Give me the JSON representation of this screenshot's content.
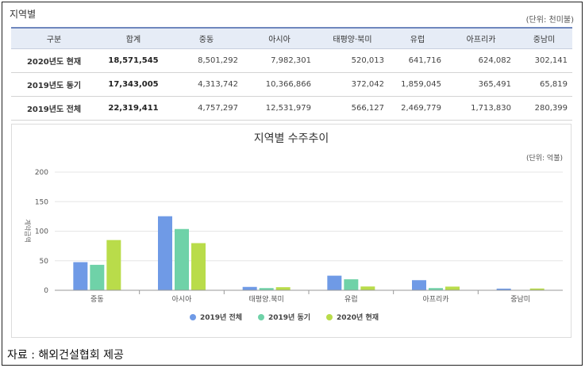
{
  "section_title": "지역별",
  "unit_label": "(단위: 천미불)",
  "table": {
    "headers": [
      "구분",
      "합계",
      "중동",
      "아시아",
      "태평양·북미",
      "유럽",
      "아프리카",
      "중남미"
    ],
    "rows": [
      {
        "label": "2020년도 현재",
        "total": "18,571,545",
        "values": [
          "8,501,292",
          "7,982,301",
          "520,013",
          "641,716",
          "624,082",
          "302,141"
        ]
      },
      {
        "label": "2019년도 동기",
        "total": "17,343,005",
        "values": [
          "4,313,742",
          "10,366,866",
          "372,042",
          "1,859,045",
          "365,491",
          "65,819"
        ]
      },
      {
        "label": "2019년도 전체",
        "total": "22,319,411",
        "values": [
          "4,757,297",
          "12,531,979",
          "566,127",
          "2,469,779",
          "1,713,830",
          "280,399"
        ]
      }
    ]
  },
  "chart_data": {
    "type": "bar",
    "title": "지역별 수주추이",
    "unit": "(단위: 억불)",
    "ylabel": "계약금액",
    "xlabel": "",
    "ylim": [
      0,
      200
    ],
    "yticks": [
      0,
      50,
      100,
      150,
      200
    ],
    "grid": true,
    "legend_position": "bottom",
    "categories": [
      "중동",
      "아시아",
      "태평양.북미",
      "유럽",
      "아프리카",
      "중남미"
    ],
    "series": [
      {
        "name": "2019년 전체",
        "color": "#6f9ae6",
        "values": [
          47.6,
          125.3,
          5.7,
          24.7,
          17.1,
          2.8
        ]
      },
      {
        "name": "2019년 동기",
        "color": "#6fd2a8",
        "values": [
          43.1,
          103.7,
          3.7,
          18.6,
          3.7,
          0.7
        ]
      },
      {
        "name": "2020년 현재",
        "color": "#b9dc4a",
        "values": [
          85.0,
          79.8,
          5.2,
          6.4,
          6.2,
          3.0
        ]
      }
    ]
  },
  "source": "자료 : 해외건설협회 제공"
}
